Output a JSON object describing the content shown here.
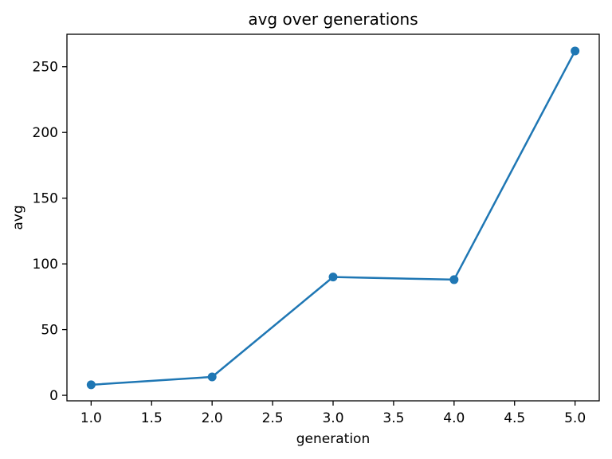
{
  "figure": {
    "background": "#ffffff",
    "text_color": "#000000",
    "spine_color": "#000000"
  },
  "chart_data": {
    "type": "line",
    "title": "avg over generations",
    "xlabel": "generation",
    "ylabel": "avg",
    "series": [
      {
        "name": "avg",
        "x": [
          1,
          2,
          3,
          4,
          5
        ],
        "y": [
          8,
          14,
          90,
          88,
          262
        ],
        "line_color": "#1f77b4",
        "marker": "circle",
        "marker_color": "#1f77b4"
      }
    ],
    "xlim": [
      0.8,
      5.2
    ],
    "ylim": [
      -4.2,
      274.7
    ],
    "xticks": {
      "values": [
        1.0,
        1.5,
        2.0,
        2.5,
        3.0,
        3.5,
        4.0,
        4.5,
        5.0
      ],
      "labels": [
        "1.0",
        "1.5",
        "2.0",
        "2.5",
        "3.0",
        "3.5",
        "4.0",
        "4.5",
        "5.0"
      ]
    },
    "yticks": {
      "values": [
        0,
        50,
        100,
        150,
        200,
        250
      ],
      "labels": [
        "0",
        "50",
        "100",
        "150",
        "200",
        "250"
      ]
    },
    "grid": false,
    "legend": null
  }
}
